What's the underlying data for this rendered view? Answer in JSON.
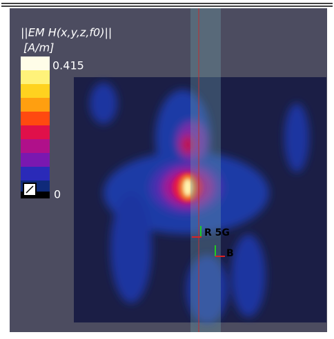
{
  "view": {
    "title": "||EM H(x,y,z,f0)||",
    "unit": "[A/m]",
    "colorbar": {
      "max": 0.415,
      "min": 0
    },
    "labels": [
      "R 5G",
      "B"
    ]
  }
}
